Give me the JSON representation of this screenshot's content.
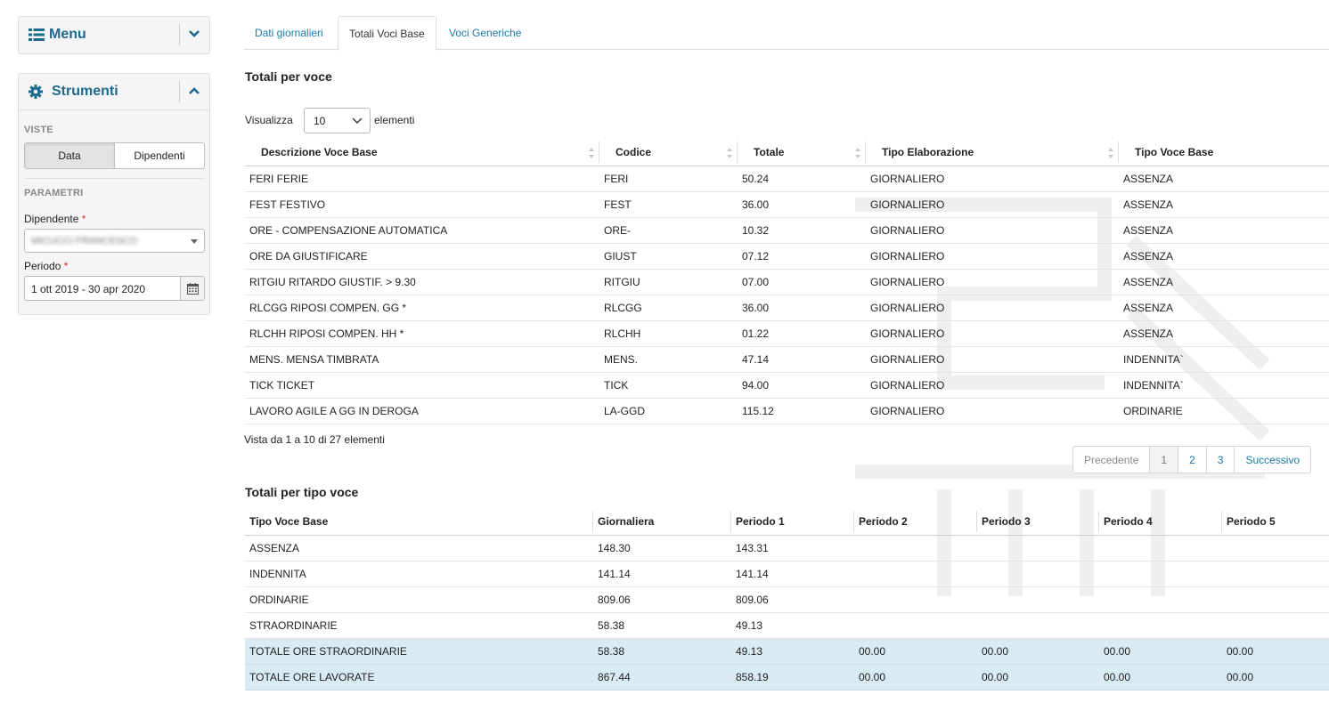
{
  "sidebar": {
    "menu_title": "Menu",
    "tools_title": "Strumenti",
    "views_label": "VISTE",
    "view_buttons": [
      "Data",
      "Dipendenti"
    ],
    "params_label": "PARAMETRI",
    "employee_label": "Dipendente",
    "employee_value": "MICUCCI FRANCESCO",
    "period_label": "Periodo",
    "period_value": "1 ott 2019 - 30 apr 2020",
    "required_mark": "*"
  },
  "tabs": [
    "Dati giornalieri",
    "Totali Voci Base",
    "Voci Generiche"
  ],
  "section1": {
    "title": "Totali per voce",
    "show_label": "Visualizza",
    "page_length": "10",
    "elements_label": "elementi",
    "columns": [
      "Descrizione Voce Base",
      "Codice",
      "Totale",
      "Tipo Elaborazione",
      "Tipo Voce Base"
    ],
    "rows": [
      [
        "FERI FERIE",
        "FERI",
        "50.24",
        "GIORNALIERO",
        "ASSENZA"
      ],
      [
        "FEST FESTIVO",
        "FEST",
        "36.00",
        "GIORNALIERO",
        "ASSENZA"
      ],
      [
        "ORE - COMPENSAZIONE AUTOMATICA",
        "ORE-",
        "10.32",
        "GIORNALIERO",
        "ASSENZA"
      ],
      [
        "ORE DA GIUSTIFICARE",
        "GIUST",
        "07.12",
        "GIORNALIERO",
        "ASSENZA"
      ],
      [
        "RITGIU RITARDO GIUSTIF. > 9.30",
        "RITGIU",
        "07.00",
        "GIORNALIERO",
        "ASSENZA"
      ],
      [
        "RLCGG RIPOSI COMPEN. GG *",
        "RLCGG",
        "36.00",
        "GIORNALIERO",
        "ASSENZA"
      ],
      [
        "RLCHH RIPOSI COMPEN. HH *",
        "RLCHH",
        "01.22",
        "GIORNALIERO",
        "ASSENZA"
      ],
      [
        "MENS. MENSA TIMBRATA",
        "MENS.",
        "47.14",
        "GIORNALIERO",
        "INDENNITA`"
      ],
      [
        "TICK TICKET",
        "TICK",
        "94.00",
        "GIORNALIERO",
        "INDENNITA`"
      ],
      [
        "LAVORO AGILE A GG IN DEROGA",
        "LA-GGD",
        "115.12",
        "GIORNALIERO",
        "ORDINARIE"
      ]
    ],
    "info": "Vista da 1 a 10 di 27 elementi",
    "pager": {
      "prev": "Precedente",
      "pages": [
        "1",
        "2",
        "3"
      ],
      "current": "1",
      "next": "Successivo"
    }
  },
  "section2": {
    "title": "Totali per tipo voce",
    "columns": [
      "Tipo Voce Base",
      "Giornaliera",
      "Periodo 1",
      "Periodo 2",
      "Periodo 3",
      "Periodo 4",
      "Periodo 5"
    ],
    "rows": [
      [
        "ASSENZA",
        "148.30",
        "143.31",
        "",
        "",
        "",
        ""
      ],
      [
        "INDENNITA",
        "141.14",
        "141.14",
        "",
        "",
        "",
        ""
      ],
      [
        "ORDINARIE",
        "809.06",
        "809.06",
        "",
        "",
        "",
        ""
      ],
      [
        "STRAORDINARIE",
        "58.38",
        "49.13",
        "",
        "",
        "",
        ""
      ]
    ],
    "total_rows": [
      [
        "TOTALE ORE STRAORDINARIE",
        "58.38",
        "49.13",
        "00.00",
        "00.00",
        "00.00",
        "00.00"
      ],
      [
        "TOTALE ORE LAVORATE",
        "867.44",
        "858.19",
        "00.00",
        "00.00",
        "00.00",
        "00.00"
      ]
    ]
  },
  "colors": {
    "accent": "#1d6a8f",
    "link": "#1a7aa8",
    "total_row_bg": "#d8ebf3",
    "required": "#c9302c"
  }
}
